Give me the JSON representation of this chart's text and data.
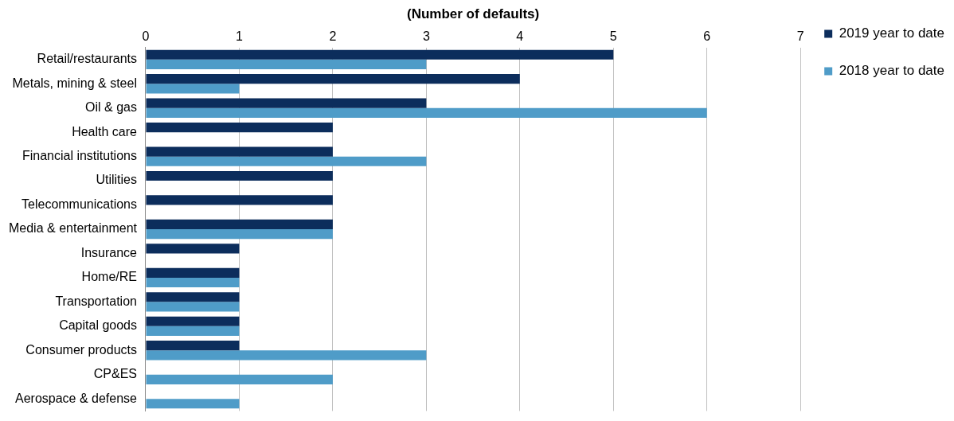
{
  "chart_data": {
    "type": "bar",
    "orientation": "horizontal",
    "xlabel": "(Number of defaults)",
    "categories": [
      "Retail/restaurants",
      "Metals, mining & steel",
      "Oil & gas",
      "Health care",
      "Financial institutions",
      "Utilities",
      "Telecommunications",
      "Media & entertainment",
      "Insurance",
      "Home/RE",
      "Transportation",
      "Capital goods",
      "Consumer products",
      "CP&ES",
      "Aerospace & defense"
    ],
    "series": [
      {
        "name": "2019 year to date",
        "color": "#0c2d5c",
        "values": [
          5,
          4,
          3,
          2,
          2,
          2,
          2,
          2,
          1,
          1,
          1,
          1,
          1,
          0,
          0
        ]
      },
      {
        "name": "2018 year to date",
        "color": "#4f9cc8",
        "values": [
          3,
          1,
          6,
          0,
          3,
          0,
          0,
          2,
          0,
          1,
          1,
          1,
          3,
          2,
          1
        ]
      }
    ],
    "xlim": [
      0,
      7
    ],
    "xticks": [
      0,
      1,
      2,
      3,
      4,
      5,
      6,
      7
    ],
    "grid": "x",
    "legend": "top right"
  }
}
